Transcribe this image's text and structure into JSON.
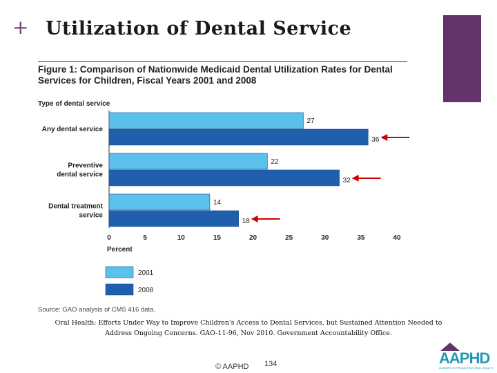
{
  "slide": {
    "plus": "+",
    "title": "Utilization of Dental Service",
    "page_number": "134",
    "copyright": "© AAPHD"
  },
  "colors": {
    "accent": "#65336b",
    "bar_2001": "#5bc0ec",
    "bar_2008": "#1f5fae",
    "arrow": "#d40000"
  },
  "figure": {
    "title": "Figure 1: Comparison of Nationwide Medicaid Dental Utilization Rates for Dental Services for Children, Fiscal Years 2001 and 2008",
    "source": "Source: GAO analysis of CMS 416 data."
  },
  "citation": "Oral Health: Efforts Under Way to Improve Children's Access to Dental Services, but Sustained Attention Needed to Address Ongoing Concerns. GAO-11-96, Nov 2010. Government Accountability Office.",
  "logo": {
    "text": "AAPHD",
    "tagline": "LEADERS IN PROMOTING ORAL HEALTH"
  },
  "chart_data": {
    "type": "bar",
    "orientation": "horizontal",
    "category_axis_title": "Type of dental service",
    "xlabel": "Percent",
    "categories": [
      [
        "Any dental service"
      ],
      [
        "Preventive",
        "dental service"
      ],
      [
        "Dental treatment",
        "service"
      ]
    ],
    "series": [
      {
        "name": "2001",
        "values": [
          27,
          22,
          14
        ]
      },
      {
        "name": "2008",
        "values": [
          36,
          32,
          18
        ]
      }
    ],
    "xlim": [
      0,
      40
    ],
    "xticks": [
      0,
      5,
      10,
      15,
      20,
      25,
      30,
      35,
      40
    ],
    "grid": false,
    "legend_position": "bottom-left",
    "annotations": "red arrows pointing at each 2008 bar"
  }
}
